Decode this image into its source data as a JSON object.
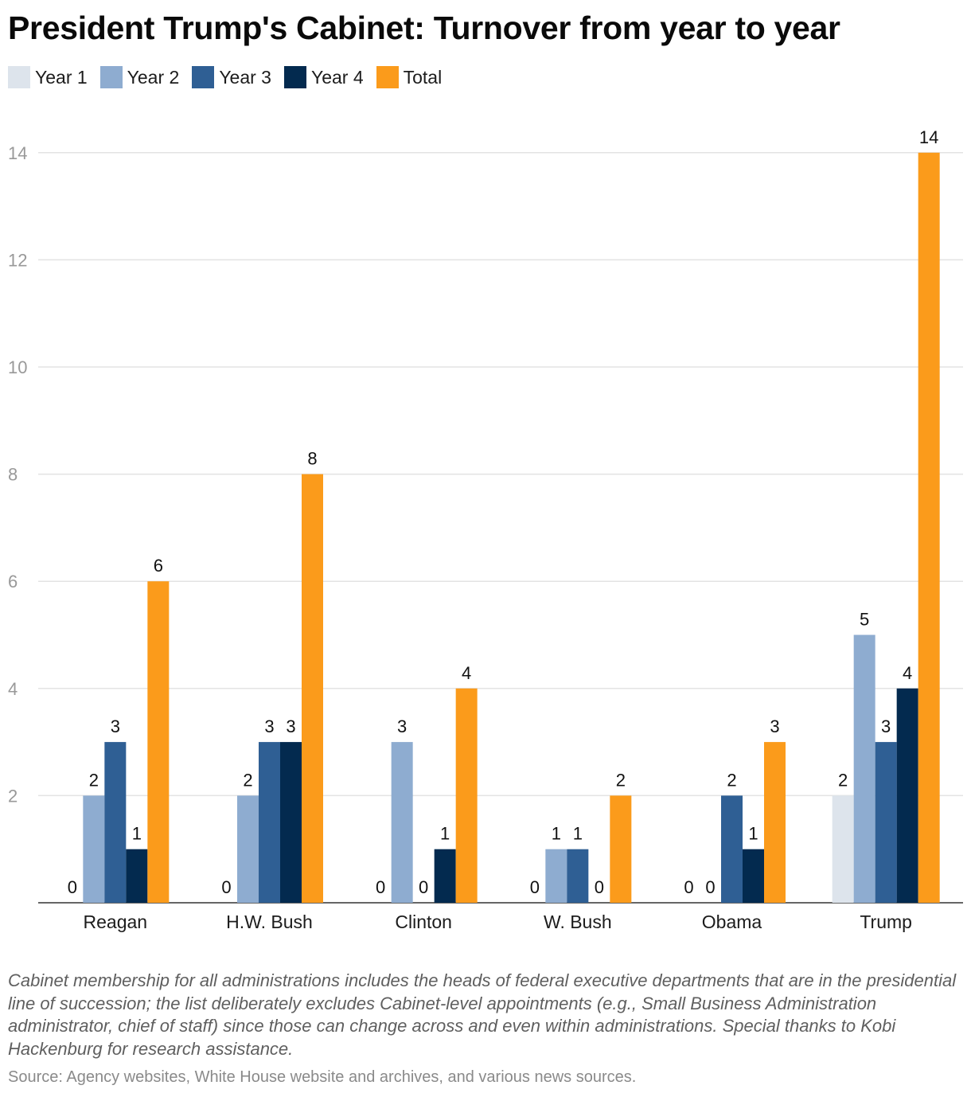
{
  "title": "President Trump's Cabinet: Turnover from year to year",
  "note": "Cabinet membership for all administrations includes the heads of federal executive departments that are in the presidential line of succession; the list deliberately excludes Cabinet-level appointments (e.g., Small Business Administration administrator, chief of staff) since those can change across and even within administrations. Special thanks to Kobi Hackenburg for research assistance.",
  "source": "Source: Agency websites, White House website and archives, and various news sources.",
  "chart_data": {
    "type": "bar",
    "title": "President Trump's Cabinet: Turnover from year to year",
    "categories": [
      "Reagan",
      "H.W. Bush",
      "Clinton",
      "W. Bush",
      "Obama",
      "Trump"
    ],
    "series": [
      {
        "name": "Year 1",
        "color": "#dde4ec",
        "values": [
          0,
          0,
          0,
          0,
          0,
          2
        ]
      },
      {
        "name": "Year 2",
        "color": "#8eacd0",
        "values": [
          2,
          2,
          3,
          1,
          0,
          5
        ]
      },
      {
        "name": "Year 3",
        "color": "#2f5f94",
        "values": [
          3,
          3,
          0,
          1,
          2,
          3
        ]
      },
      {
        "name": "Year 4",
        "color": "#032a4f",
        "values": [
          1,
          3,
          1,
          0,
          1,
          4
        ]
      },
      {
        "name": "Total",
        "color": "#fb9b1b",
        "values": [
          6,
          8,
          4,
          2,
          3,
          14
        ]
      }
    ],
    "y_ticks": [
      2,
      4,
      6,
      8,
      10,
      12,
      14
    ],
    "ylim": [
      0,
      14
    ],
    "xlabel": "",
    "ylabel": "",
    "grid": true,
    "legend_position": "top-left"
  }
}
